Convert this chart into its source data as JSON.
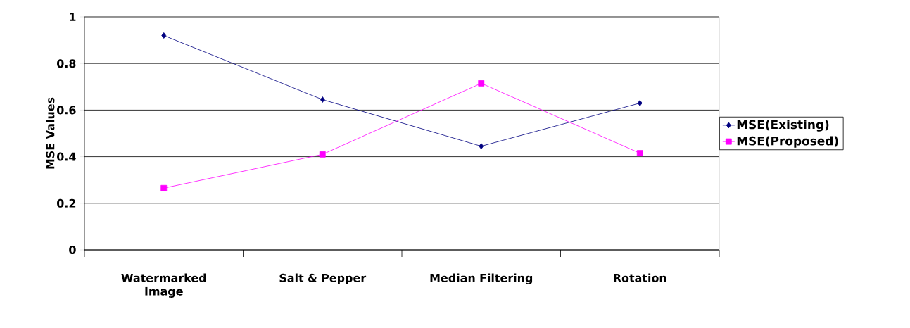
{
  "chart_data": {
    "type": "line",
    "ylabel": "MSE Values",
    "categories": [
      "Watermarked Image",
      "Salt & Pepper",
      "Median Filtering",
      "Rotation"
    ],
    "series": [
      {
        "name": "MSE(Existing)",
        "color": "#000080",
        "marker": "diamond",
        "values": [
          0.92,
          0.645,
          0.445,
          0.63
        ]
      },
      {
        "name": "MSE(Proposed)",
        "color": "#ff00ff",
        "marker": "square",
        "values": [
          0.265,
          0.41,
          0.715,
          0.415
        ]
      }
    ],
    "ylim": [
      0,
      1
    ],
    "yticks": [
      0,
      0.2,
      0.4,
      0.6,
      0.8,
      1
    ],
    "grid": "y",
    "legend": "right",
    "line_style": "solid"
  }
}
